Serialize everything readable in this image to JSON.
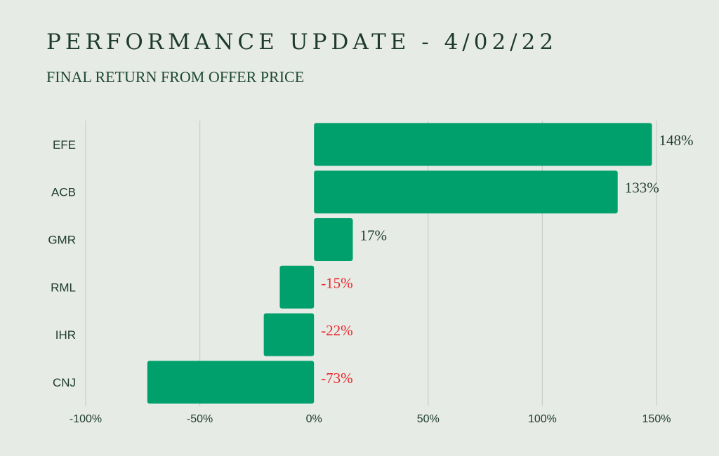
{
  "header": {
    "title": "PERFORMANCE UPDATE - 4/02/22",
    "subtitle": "FINAL RETURN FROM OFFER PRICE"
  },
  "colors": {
    "background": "#e7ebe5",
    "bar": "#00a06c",
    "positive_label": "#1d3a2d",
    "negative_label": "#e8262b",
    "grid": "#c9cec7"
  },
  "chart_data": {
    "type": "bar",
    "orientation": "horizontal",
    "title": "PERFORMANCE UPDATE - 4/02/22",
    "subtitle": "FINAL RETURN FROM OFFER PRICE",
    "categories": [
      "EFE",
      "ACB",
      "GMR",
      "RML",
      "IHR",
      "CNJ"
    ],
    "values": [
      148,
      133,
      17,
      -15,
      -22,
      -73
    ],
    "data_labels": [
      "148%",
      "133%",
      "17%",
      "-15%",
      "-22%",
      "-73%"
    ],
    "xlim": [
      -100,
      150
    ],
    "xticks": [
      -100,
      -50,
      0,
      50,
      100,
      150
    ],
    "xtick_labels": [
      "-100%",
      "-50%",
      "0%",
      "50%",
      "100%",
      "150%"
    ],
    "grid": true,
    "legend": "none"
  }
}
